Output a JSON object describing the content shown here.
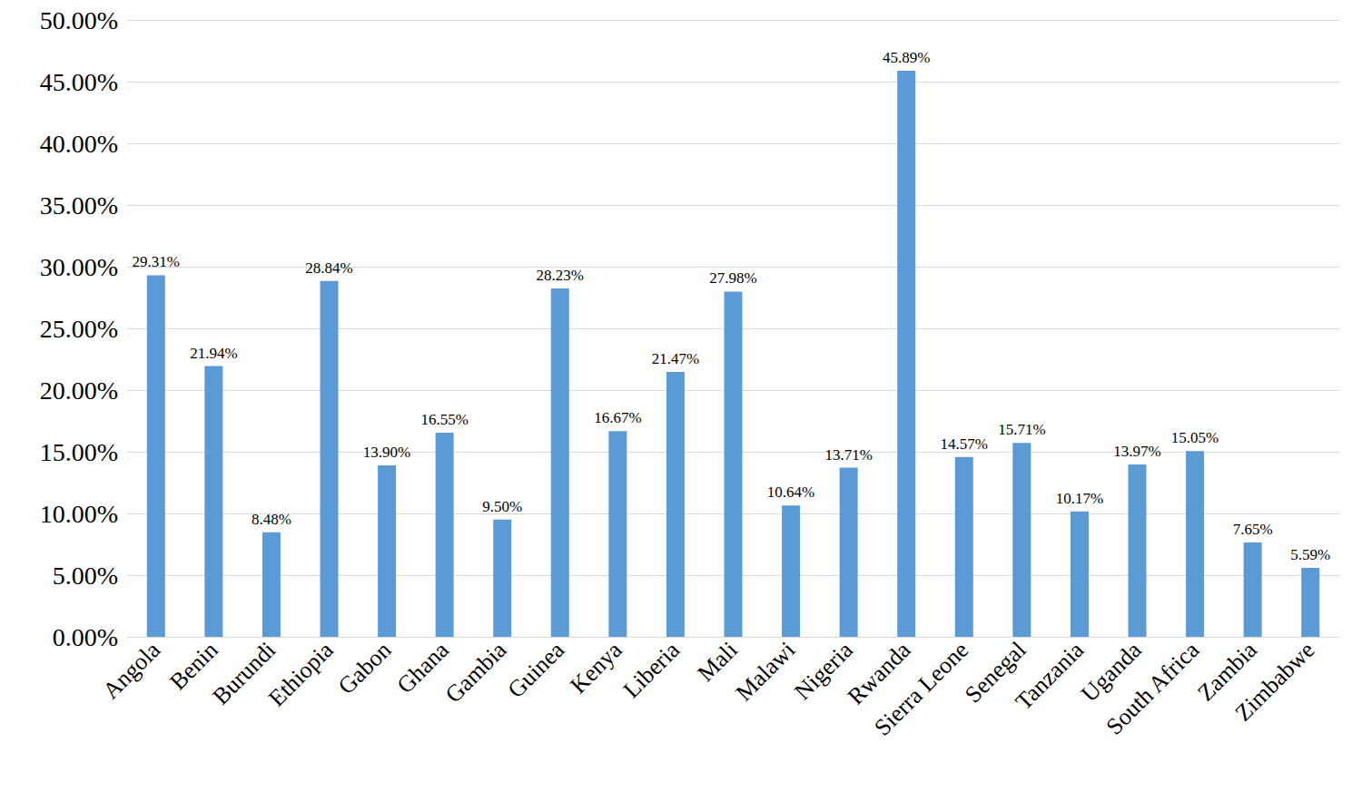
{
  "chart_data": {
    "type": "bar",
    "categories": [
      "Angola",
      "Benin",
      "Burundi",
      "Ethiopia",
      "Gabon",
      "Ghana",
      "Gambia",
      "Guinea",
      "Kenya",
      "Liberia",
      "Mali",
      "Malawi",
      "Nigeria",
      "Rwanda",
      "Sierra Leone",
      "Senegal",
      "Tanzania",
      "Uganda",
      "South Africa",
      "Zambia",
      "Zimbabwe"
    ],
    "values": [
      29.31,
      21.94,
      8.48,
      28.84,
      13.9,
      16.55,
      9.5,
      28.23,
      16.67,
      21.47,
      27.98,
      10.64,
      13.71,
      45.89,
      14.57,
      15.71,
      10.17,
      13.97,
      15.05,
      7.65,
      5.59
    ],
    "value_labels": [
      "29.31%",
      "21.94%",
      "8.48%",
      "28.84%",
      "13.90%",
      "16.55%",
      "9.50%",
      "28.23%",
      "16.67%",
      "21.47%",
      "27.98%",
      "10.64%",
      "13.71%",
      "45.89%",
      "14.57%",
      "15.71%",
      "10.17%",
      "13.97%",
      "15.05%",
      "7.65%",
      "5.59%"
    ],
    "color": "#5b9bd5",
    "ylim": [
      0,
      50
    ],
    "yticks": [
      {
        "value": 0,
        "label": "0.00%"
      },
      {
        "value": 5,
        "label": "5.00%"
      },
      {
        "value": 10,
        "label": "10.00%"
      },
      {
        "value": 15,
        "label": "15.00%"
      },
      {
        "value": 20,
        "label": "20.00%"
      },
      {
        "value": 25,
        "label": "25.00%"
      },
      {
        "value": 30,
        "label": "30.00%"
      },
      {
        "value": 35,
        "label": "35.00%"
      },
      {
        "value": 40,
        "label": "40.00%"
      },
      {
        "value": 45,
        "label": "45.00%"
      },
      {
        "value": 50,
        "label": "50.00%"
      }
    ],
    "grid": true,
    "data_labels": true
  }
}
